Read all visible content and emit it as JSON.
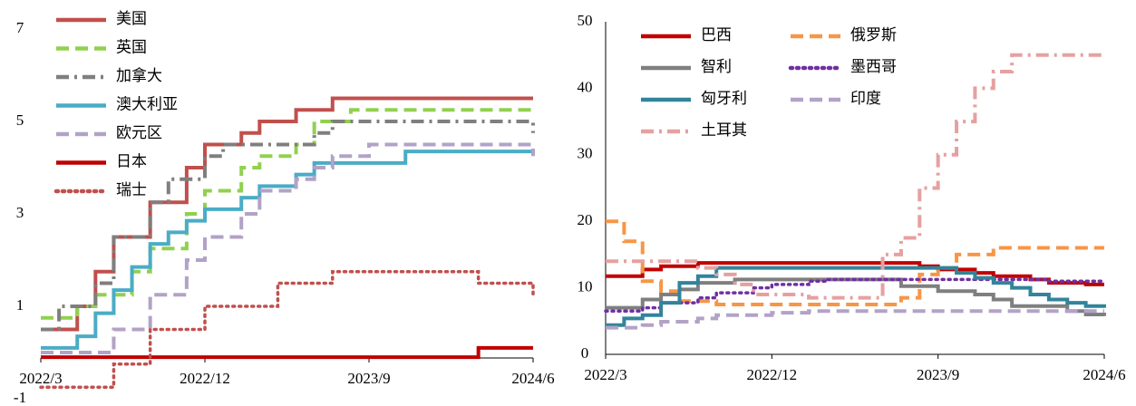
{
  "chart_data": [
    {
      "type": "line",
      "step": true,
      "legend_columns": 1,
      "categories": [
        "2022/3",
        null,
        null,
        null,
        null,
        null,
        null,
        null,
        null,
        "2022/12",
        null,
        null,
        null,
        null,
        null,
        null,
        null,
        null,
        "2023/9",
        null,
        null,
        null,
        null,
        null,
        null,
        null,
        null,
        "2024/6"
      ],
      "ylim": [
        -1,
        7
      ],
      "yticks": [
        -1,
        1,
        3,
        5,
        7
      ],
      "series": [
        {
          "name": "美国",
          "color": "#c0504d",
          "dash": "solid",
          "values": [
            0.5,
            0.5,
            1,
            1.75,
            2.5,
            2.5,
            3.25,
            3.25,
            4,
            4.5,
            4.5,
            4.75,
            5,
            5,
            5.25,
            5.25,
            5.5,
            5.5,
            5.5,
            5.5,
            5.5,
            5.5,
            5.5,
            5.5,
            5.5,
            5.5,
            5.5,
            5.5
          ]
        },
        {
          "name": "英国",
          "color": "#92d050",
          "dash": "dashed",
          "values": [
            0.75,
            0.75,
            1,
            1.25,
            1.25,
            1.75,
            2.25,
            2.25,
            3,
            3.5,
            3.5,
            4,
            4.25,
            4.25,
            4.5,
            5,
            5,
            5.25,
            5.25,
            5.25,
            5.25,
            5.25,
            5.25,
            5.25,
            5.25,
            5.25,
            5.25,
            5.25
          ]
        },
        {
          "name": "加拿大",
          "color": "#7f7f7f",
          "dash": "dashdot",
          "values": [
            0.5,
            1,
            1,
            1.5,
            2.5,
            2.5,
            3.25,
            3.75,
            3.75,
            4.25,
            4.5,
            4.5,
            4.5,
            4.5,
            4.5,
            4.75,
            5,
            5,
            5,
            5,
            5,
            5,
            5,
            5,
            5,
            5,
            5,
            4.75
          ]
        },
        {
          "name": "澳大利亚",
          "color": "#4bacc6",
          "dash": "solid",
          "values": [
            0.1,
            0.1,
            0.35,
            0.85,
            1.35,
            1.85,
            2.35,
            2.6,
            2.85,
            3.1,
            3.1,
            3.35,
            3.6,
            3.6,
            3.85,
            4.1,
            4.1,
            4.1,
            4.1,
            4.1,
            4.35,
            4.35,
            4.35,
            4.35,
            4.35,
            4.35,
            4.35,
            4.35
          ]
        },
        {
          "name": "欧元区",
          "color": "#b3a2c7",
          "dash": "dashed",
          "values": [
            0,
            0,
            0,
            0,
            0.5,
            0.5,
            1.25,
            1.25,
            2,
            2.5,
            2.5,
            3,
            3.5,
            3.5,
            3.75,
            4,
            4.25,
            4.25,
            4.5,
            4.5,
            4.5,
            4.5,
            4.5,
            4.5,
            4.5,
            4.5,
            4.5,
            4.25
          ]
        },
        {
          "name": "日本",
          "color": "#c00000",
          "dash": "solid",
          "values": [
            -0.1,
            -0.1,
            -0.1,
            -0.1,
            -0.1,
            -0.1,
            -0.1,
            -0.1,
            -0.1,
            -0.1,
            -0.1,
            -0.1,
            -0.1,
            -0.1,
            -0.1,
            -0.1,
            -0.1,
            -0.1,
            -0.1,
            -0.1,
            -0.1,
            -0.1,
            -0.1,
            -0.1,
            0.1,
            0.1,
            0.1,
            0.1
          ]
        },
        {
          "name": "瑞士",
          "color": "#c0504d",
          "dash": "dotted",
          "values": [
            -0.75,
            -0.75,
            -0.75,
            -0.75,
            -0.25,
            -0.25,
            0.5,
            0.5,
            0.5,
            1,
            1,
            1,
            1,
            1.5,
            1.5,
            1.5,
            1.75,
            1.75,
            1.75,
            1.75,
            1.75,
            1.75,
            1.75,
            1.75,
            1.5,
            1.5,
            1.5,
            1.25
          ]
        }
      ]
    },
    {
      "type": "line",
      "step": true,
      "legend_columns": 2,
      "categories": [
        "2022/3",
        null,
        null,
        null,
        null,
        null,
        null,
        null,
        null,
        "2022/12",
        null,
        null,
        null,
        null,
        null,
        null,
        null,
        null,
        "2023/9",
        null,
        null,
        null,
        null,
        null,
        null,
        null,
        null,
        "2024/6"
      ],
      "ylim": [
        0,
        50
      ],
      "yticks": [
        0,
        10,
        20,
        30,
        40,
        50
      ],
      "series": [
        {
          "name": "巴西",
          "color": "#c00000",
          "dash": "solid",
          "values": [
            11.75,
            11.75,
            12.75,
            13.25,
            13.25,
            13.75,
            13.75,
            13.75,
            13.75,
            13.75,
            13.75,
            13.75,
            13.75,
            13.75,
            13.75,
            13.75,
            13.75,
            13.25,
            12.75,
            12.75,
            12.25,
            11.75,
            11.75,
            11.25,
            10.75,
            10.75,
            10.5,
            10.5
          ]
        },
        {
          "name": "俄罗斯",
          "color": "#f79646",
          "dash": "dashed",
          "values": [
            20,
            17,
            11,
            9.5,
            8,
            8,
            7.5,
            7.5,
            7.5,
            7.5,
            7.5,
            7.5,
            7.5,
            7.5,
            7.5,
            7.5,
            8.5,
            12,
            13,
            15,
            15,
            16,
            16,
            16,
            16,
            16,
            16,
            16
          ]
        },
        {
          "name": "智利",
          "color": "#7f7f7f",
          "dash": "solid",
          "values": [
            7,
            7,
            8.25,
            9,
            9.75,
            10.75,
            10.75,
            11.25,
            11.25,
            11.25,
            11.25,
            11.25,
            11.25,
            11.25,
            11.25,
            11.25,
            10.25,
            10.25,
            9.5,
            9.5,
            9,
            8.25,
            7.25,
            7.25,
            7.25,
            6.5,
            6,
            5.75
          ]
        },
        {
          "name": "墨西哥",
          "color": "#7030a0",
          "dash": "dotted",
          "values": [
            6.5,
            6.5,
            7,
            7.75,
            7.75,
            8.5,
            9.25,
            9.25,
            10,
            10.5,
            10.5,
            11,
            11.25,
            11.25,
            11.25,
            11.25,
            11.25,
            11.25,
            11.25,
            11.25,
            11.25,
            11.25,
            11.25,
            11.25,
            11,
            11,
            11,
            11
          ]
        },
        {
          "name": "匈牙利",
          "color": "#31849b",
          "dash": "solid",
          "values": [
            4.4,
            5.4,
            5.9,
            7.75,
            10.75,
            11.75,
            13,
            13,
            13,
            13,
            13,
            13,
            13,
            13,
            13,
            13,
            13,
            13,
            13,
            12.25,
            11.5,
            10.75,
            10,
            9,
            8.25,
            7.75,
            7.25,
            7
          ]
        },
        {
          "name": "印度",
          "color": "#b3a2c7",
          "dash": "dashed",
          "values": [
            4,
            4,
            4.4,
            4.9,
            4.9,
            5.4,
            5.9,
            5.9,
            5.9,
            6.25,
            6.25,
            6.5,
            6.5,
            6.5,
            6.5,
            6.5,
            6.5,
            6.5,
            6.5,
            6.5,
            6.5,
            6.5,
            6.5,
            6.5,
            6.5,
            6.5,
            6.5,
            6.5
          ]
        },
        {
          "name": "土耳其",
          "color": "#e6a0a0",
          "dash": "dashdot",
          "values": [
            14,
            14,
            14,
            14,
            14,
            13,
            12,
            10.5,
            9,
            9,
            9,
            8.5,
            8.5,
            8.5,
            8.5,
            15,
            17.5,
            25,
            30,
            35,
            40,
            42.5,
            45,
            45,
            45,
            45,
            45,
            45
          ]
        }
      ]
    }
  ]
}
